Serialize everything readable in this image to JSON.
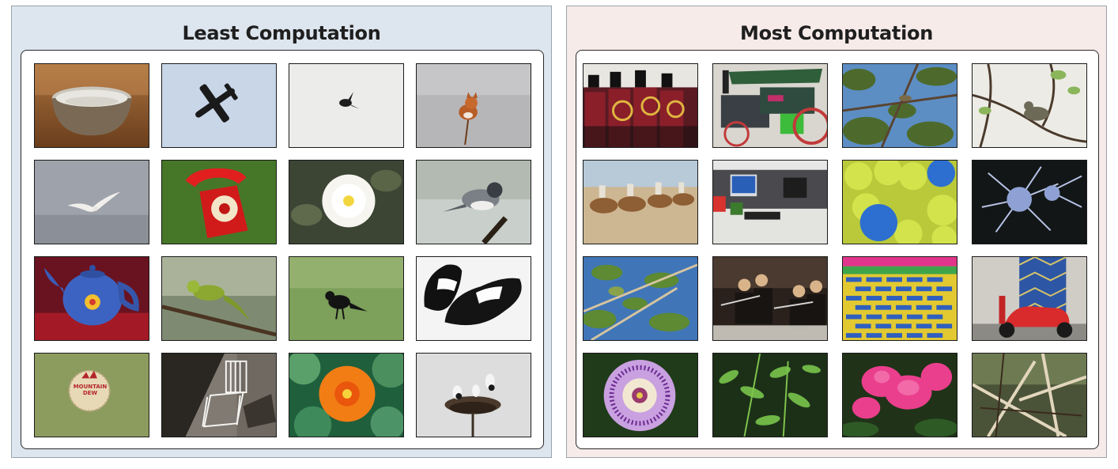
{
  "panels": {
    "left": {
      "title": "Least Computation",
      "images": [
        {
          "subject": "bowl"
        },
        {
          "subject": "airplane"
        },
        {
          "subject": "bird in flight"
        },
        {
          "subject": "dog in snow"
        },
        {
          "subject": "gull"
        },
        {
          "subject": "red telephone"
        },
        {
          "subject": "white flower"
        },
        {
          "subject": "junco bird"
        },
        {
          "subject": "blue teapot"
        },
        {
          "subject": "chameleon"
        },
        {
          "subject": "crow"
        },
        {
          "subject": "shoes"
        },
        {
          "subject": "bottle cap",
          "visible_text": "MOUNTAIN DEW"
        },
        {
          "subject": "rocking chair"
        },
        {
          "subject": "orange nasturtium"
        },
        {
          "subject": "storks nest"
        }
      ]
    },
    "right": {
      "title": "Most Computation",
      "images": [
        {
          "subject": "marching band"
        },
        {
          "subject": "steam tractor"
        },
        {
          "subject": "bird in tree"
        },
        {
          "subject": "warbler on branch"
        },
        {
          "subject": "camels"
        },
        {
          "subject": "office desk"
        },
        {
          "subject": "tennis balls"
        },
        {
          "subject": "thistle"
        },
        {
          "subject": "bird in leaves"
        },
        {
          "subject": "flute players"
        },
        {
          "subject": "colorful brick wall"
        },
        {
          "subject": "red scooter"
        },
        {
          "subject": "passion flower"
        },
        {
          "subject": "green plant"
        },
        {
          "subject": "pink cyclamen"
        },
        {
          "subject": "tangled branches"
        }
      ]
    }
  },
  "colors": {
    "left_panel_bg": "#dde5ee",
    "right_panel_bg": "#f6ebe9"
  }
}
